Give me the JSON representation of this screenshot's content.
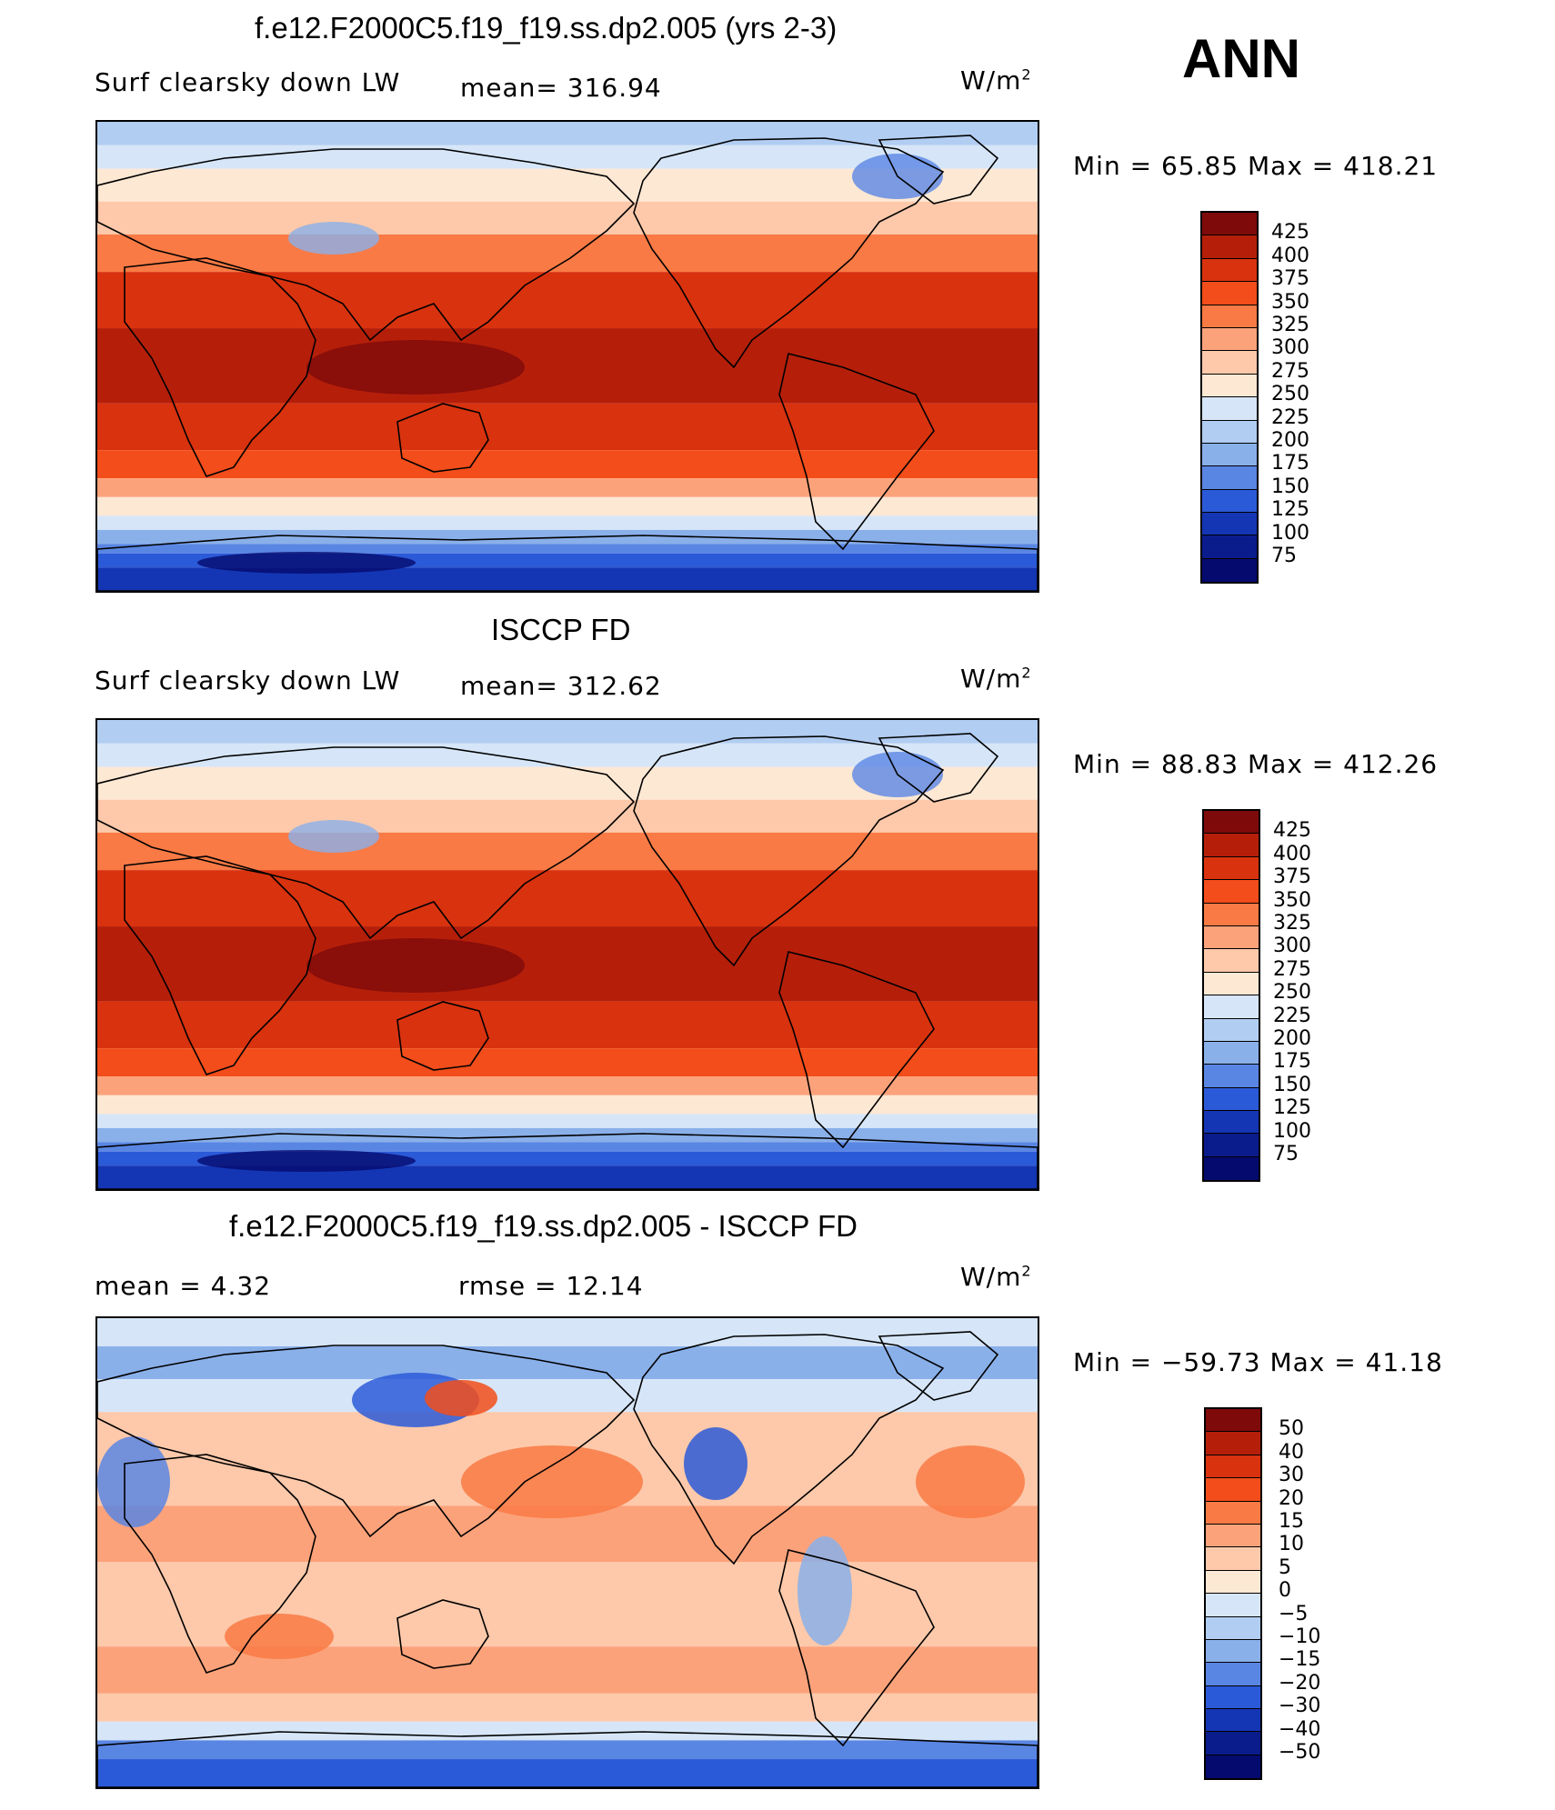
{
  "season": "ANN",
  "panels": [
    {
      "title": "f.e12.F2000C5.f19_f19.ss.dp2.005 (yrs 2-3)",
      "left_label": "Surf clearsky down LW",
      "mid_label": "mean= 316.94",
      "units": "W/m",
      "units_sup": "2",
      "minmax": "Min =   65.85 Max = 418.21",
      "levels": [
        "425",
        "400",
        "375",
        "350",
        "325",
        "300",
        "275",
        "250",
        "225",
        "200",
        "175",
        "150",
        "125",
        "100",
        "75"
      ],
      "colors": [
        "#7f0a0a",
        "#b51f0a",
        "#d9320f",
        "#f24d1a",
        "#f97a45",
        "#fca27a",
        "#fdc9aa",
        "#fde8d4",
        "#d6e6f8",
        "#b2cdf2",
        "#8ab0ea",
        "#5a86e3",
        "#2b5ad8",
        "#1436b4",
        "#0a1c8c",
        "#050a6e"
      ],
      "map_type": "mean"
    },
    {
      "title": "ISCCP FD",
      "left_label": "Surf clearsky down LW",
      "mid_label": "mean= 312.62",
      "units": "W/m",
      "units_sup": "2",
      "minmax": "Min =   88.83 Max = 412.26",
      "levels": [
        "425",
        "400",
        "375",
        "350",
        "325",
        "300",
        "275",
        "250",
        "225",
        "200",
        "175",
        "150",
        "125",
        "100",
        "75"
      ],
      "colors": [
        "#7f0a0a",
        "#b51f0a",
        "#d9320f",
        "#f24d1a",
        "#f97a45",
        "#fca27a",
        "#fdc9aa",
        "#fde8d4",
        "#d6e6f8",
        "#b2cdf2",
        "#8ab0ea",
        "#5a86e3",
        "#2b5ad8",
        "#1436b4",
        "#0a1c8c",
        "#050a6e"
      ],
      "map_type": "mean"
    },
    {
      "title": "f.e12.F2000C5.f19_f19.ss.dp2.005 - ISCCP FD",
      "left_label": "mean =    4.32",
      "mid_label": "rmse =   12.14",
      "units": "W/m",
      "units_sup": "2",
      "minmax": "Min = −59.73 Max =   41.18",
      "levels": [
        "50",
        "40",
        "30",
        "20",
        "15",
        "10",
        "5",
        "0",
        "−5",
        "−10",
        "−15",
        "−20",
        "−30",
        "−40",
        "−50"
      ],
      "colors": [
        "#7f0a0a",
        "#b51f0a",
        "#d9320f",
        "#f24d1a",
        "#f97a45",
        "#fca27a",
        "#fdc9aa",
        "#fde8d4",
        "#d6e6f8",
        "#b2cdf2",
        "#8ab0ea",
        "#5a86e3",
        "#2b5ad8",
        "#1436b4",
        "#0a1c8c",
        "#050a6e"
      ],
      "map_type": "diff"
    }
  ]
}
